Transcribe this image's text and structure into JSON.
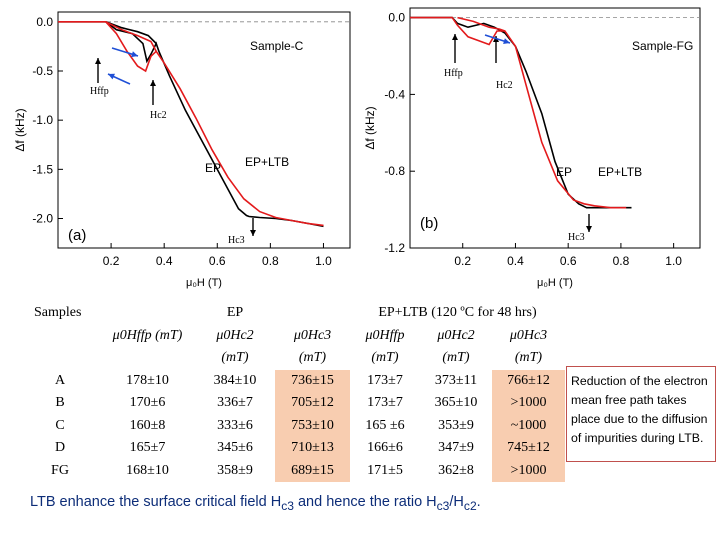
{
  "chart_data": [
    {
      "id": "a",
      "type": "line",
      "panel_label": "(a)",
      "xlabel": "μ₀H (T)",
      "ylabel": "Δf (kHz)",
      "xlim": [
        0,
        1.1
      ],
      "ylim": [
        -2.3,
        0.1
      ],
      "xticks": [
        0.2,
        0.4,
        0.6,
        0.8,
        1.0
      ],
      "xtick_labels": [
        "0.2",
        "0.4",
        "0.6",
        "0.8",
        "1.0"
      ],
      "yticks": [
        0.0,
        -0.5,
        -1.0,
        -1.5,
        -2.0
      ],
      "ytick_labels": [
        "0.0",
        "-0.5",
        "-1.0",
        "-1.5",
        "-2.0"
      ],
      "sample_label": "Sample-C",
      "curve_labels": [
        "EP",
        "EP+LTB"
      ],
      "annotations": [
        "Hffp",
        "Hc2",
        "Hc3"
      ],
      "series": [
        {
          "name": "EP",
          "color": "#000000",
          "x": [
            0.0,
            0.18,
            0.22,
            0.28,
            0.32,
            0.335,
            0.35,
            0.37,
            0.38,
            0.42,
            0.48,
            0.55,
            0.62,
            0.68,
            0.71,
            0.72,
            0.76,
            0.82,
            0.88,
            0.94,
            1.0
          ],
          "y": [
            0.0,
            0.0,
            -0.08,
            -0.12,
            -0.22,
            -0.4,
            -0.33,
            -0.22,
            -0.3,
            -0.55,
            -0.9,
            -1.25,
            -1.6,
            -1.9,
            -1.97,
            -1.98,
            -1.99,
            -2.0,
            -2.02,
            -2.05,
            -2.08
          ]
        },
        {
          "name": "EP (return)",
          "color": "#000000",
          "x": [
            0.18,
            0.24,
            0.3,
            0.34,
            0.37
          ],
          "y": [
            0.0,
            -0.06,
            -0.1,
            -0.14,
            -0.22
          ]
        },
        {
          "name": "EP+LTB",
          "color": "#e31a1c",
          "x": [
            0.0,
            0.18,
            0.22,
            0.26,
            0.3,
            0.33,
            0.35,
            0.37,
            0.4,
            0.46,
            0.52,
            0.58,
            0.64,
            0.7,
            0.76,
            0.82,
            0.88,
            0.94,
            1.0
          ],
          "y": [
            0.0,
            0.0,
            -0.12,
            -0.3,
            -0.45,
            -0.5,
            -0.35,
            -0.3,
            -0.42,
            -0.68,
            -0.98,
            -1.3,
            -1.58,
            -1.8,
            -1.93,
            -1.99,
            -2.02,
            -2.05,
            -2.07
          ]
        },
        {
          "name": "EP+LTB (return)",
          "color": "#e31a1c",
          "x": [
            0.18,
            0.24,
            0.3,
            0.35,
            0.37
          ],
          "y": [
            0.0,
            -0.08,
            -0.14,
            -0.2,
            -0.3
          ]
        }
      ]
    },
    {
      "id": "b",
      "type": "line",
      "panel_label": "(b)",
      "xlabel": "μ₀H (T)",
      "ylabel": "Δf (kHz)",
      "xlim": [
        0,
        1.1
      ],
      "ylim": [
        -1.2,
        0.05
      ],
      "xticks": [
        0.2,
        0.4,
        0.6,
        0.8,
        1.0
      ],
      "xtick_labels": [
        "0.2",
        "0.4",
        "0.6",
        "0.8",
        "1.0"
      ],
      "yticks": [
        0.0,
        -0.4,
        -0.8,
        -1.2
      ],
      "ytick_labels": [
        "0.0",
        "-0.4",
        "-0.8",
        "-1.2"
      ],
      "sample_label": "Sample-FG",
      "curve_labels": [
        "EP",
        "EP+LTB"
      ],
      "annotations": [
        "Hffp",
        "Hc2",
        "Hc3"
      ],
      "series": [
        {
          "name": "EP",
          "color": "#000000",
          "x": [
            0.0,
            0.16,
            0.18,
            0.22,
            0.28,
            0.32,
            0.36,
            0.4,
            0.44,
            0.5,
            0.55,
            0.6,
            0.64,
            0.67,
            0.69,
            0.72,
            0.78,
            0.84
          ],
          "y": [
            0.0,
            0.0,
            -0.03,
            -0.05,
            -0.03,
            -0.05,
            -0.08,
            -0.15,
            -0.28,
            -0.5,
            -0.75,
            -0.92,
            -0.97,
            -0.99,
            -0.99,
            -0.99,
            -0.99,
            -0.99
          ]
        },
        {
          "name": "EP+LTB",
          "color": "#e31a1c",
          "x": [
            0.0,
            0.16,
            0.18,
            0.22,
            0.26,
            0.3,
            0.33,
            0.36,
            0.4,
            0.44,
            0.5,
            0.56,
            0.62,
            0.66,
            0.7,
            0.76,
            0.82
          ],
          "y": [
            0.0,
            0.0,
            -0.04,
            -0.1,
            -0.12,
            -0.14,
            -0.07,
            -0.07,
            -0.15,
            -0.35,
            -0.65,
            -0.85,
            -0.95,
            -0.97,
            -0.98,
            -0.99,
            -0.99
          ]
        },
        {
          "name": "EP+LTB (return)",
          "color": "#e31a1c",
          "x": [
            0.18,
            0.24,
            0.3,
            0.34,
            0.36
          ],
          "y": [
            0.0,
            -0.02,
            -0.05,
            -0.06,
            -0.07
          ]
        }
      ]
    }
  ],
  "table": {
    "samples_header": "Samples",
    "ep_header": "EP",
    "ltb_header": "EP+LTB (120 ºC for 48 hrs)",
    "subheaders": [
      "μ0Hffp (mT)",
      "μ0Hc2",
      "μ0Hc3",
      "μ0Hffp",
      "μ0Hc2",
      "μ0Hc3"
    ],
    "unit": "(mT)",
    "rows": [
      {
        "sample": "A",
        "ep_hffp": "178±10",
        "ep_hc2": "384±10",
        "ep_hc3": "736±15",
        "ltb_hffp": "173±7",
        "ltb_hc2": "373±11",
        "ltb_hc3": "766±12"
      },
      {
        "sample": "B",
        "ep_hffp": "170±6",
        "ep_hc2": "336±7",
        "ep_hc3": "705±12",
        "ltb_hffp": "173±7",
        "ltb_hc2": "365±10",
        "ltb_hc3": ">1000"
      },
      {
        "sample": "C",
        "ep_hffp": "160±8",
        "ep_hc2": "333±6",
        "ep_hc3": "753±10",
        "ltb_hffp": "165 ±6",
        "ltb_hc2": "353±9",
        "ltb_hc3": "~1000"
      },
      {
        "sample": "D",
        "ep_hffp": "165±7",
        "ep_hc2": "345±6",
        "ep_hc3": "710±13",
        "ltb_hffp": "166±6",
        "ltb_hc2": "347±9",
        "ltb_hc3": "745±12"
      },
      {
        "sample": "FG",
        "ep_hffp": "168±10",
        "ep_hc2": "358±9",
        "ep_hc3": "689±15",
        "ltb_hffp": "171±5",
        "ltb_hc2": "362±8",
        "ltb_hc3": ">1000"
      }
    ]
  },
  "note": "Reduction of the electron mean free path takes place due to the diffusion of impurities during LTB.",
  "conclusion": {
    "prefix": "LTB enhance the surface critical field H",
    "sub1": "c3",
    "middle": " and hence the ratio H",
    "sub2": "c3",
    "slash": "/H",
    "sub3": "c2",
    "end": "."
  },
  "colors": {
    "ep": "#000000",
    "ltb": "#e31a1c",
    "arrow": "#1f4fd6",
    "highlight": "#f8cdb0",
    "note_border": "#c0504d",
    "conclusion": "#0d2d78"
  }
}
